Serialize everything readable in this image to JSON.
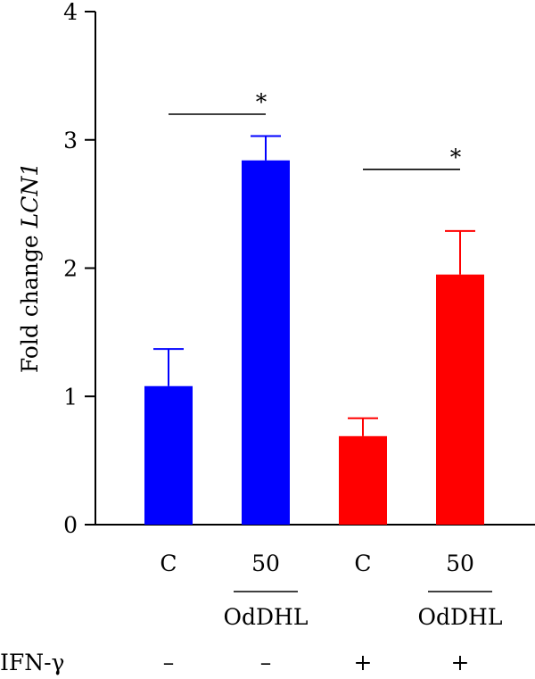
{
  "chart_data": {
    "type": "bar",
    "ylabel_prefix": "Fold change ",
    "ylabel_gene": "LCN1",
    "ylim": [
      0,
      4
    ],
    "yticks": [
      "0",
      "1",
      "2",
      "3",
      "4"
    ],
    "categories": [
      "C",
      "50",
      "C",
      "50"
    ],
    "values": [
      1.08,
      2.84,
      0.69,
      1.95
    ],
    "errors": [
      0.29,
      0.19,
      0.14,
      0.34
    ],
    "colors": [
      "#0000ff",
      "#0000ff",
      "#ff0000",
      "#ff0000"
    ],
    "group_label": "OdDHL",
    "ifn_label": "IFN-γ",
    "ifn_values": [
      "–",
      "–",
      "+",
      "+"
    ],
    "significance": [
      {
        "from": 0,
        "to": 1,
        "label": "*",
        "y": 3.2
      },
      {
        "from": 2,
        "to": 3,
        "label": "*",
        "y": 2.77
      }
    ]
  }
}
